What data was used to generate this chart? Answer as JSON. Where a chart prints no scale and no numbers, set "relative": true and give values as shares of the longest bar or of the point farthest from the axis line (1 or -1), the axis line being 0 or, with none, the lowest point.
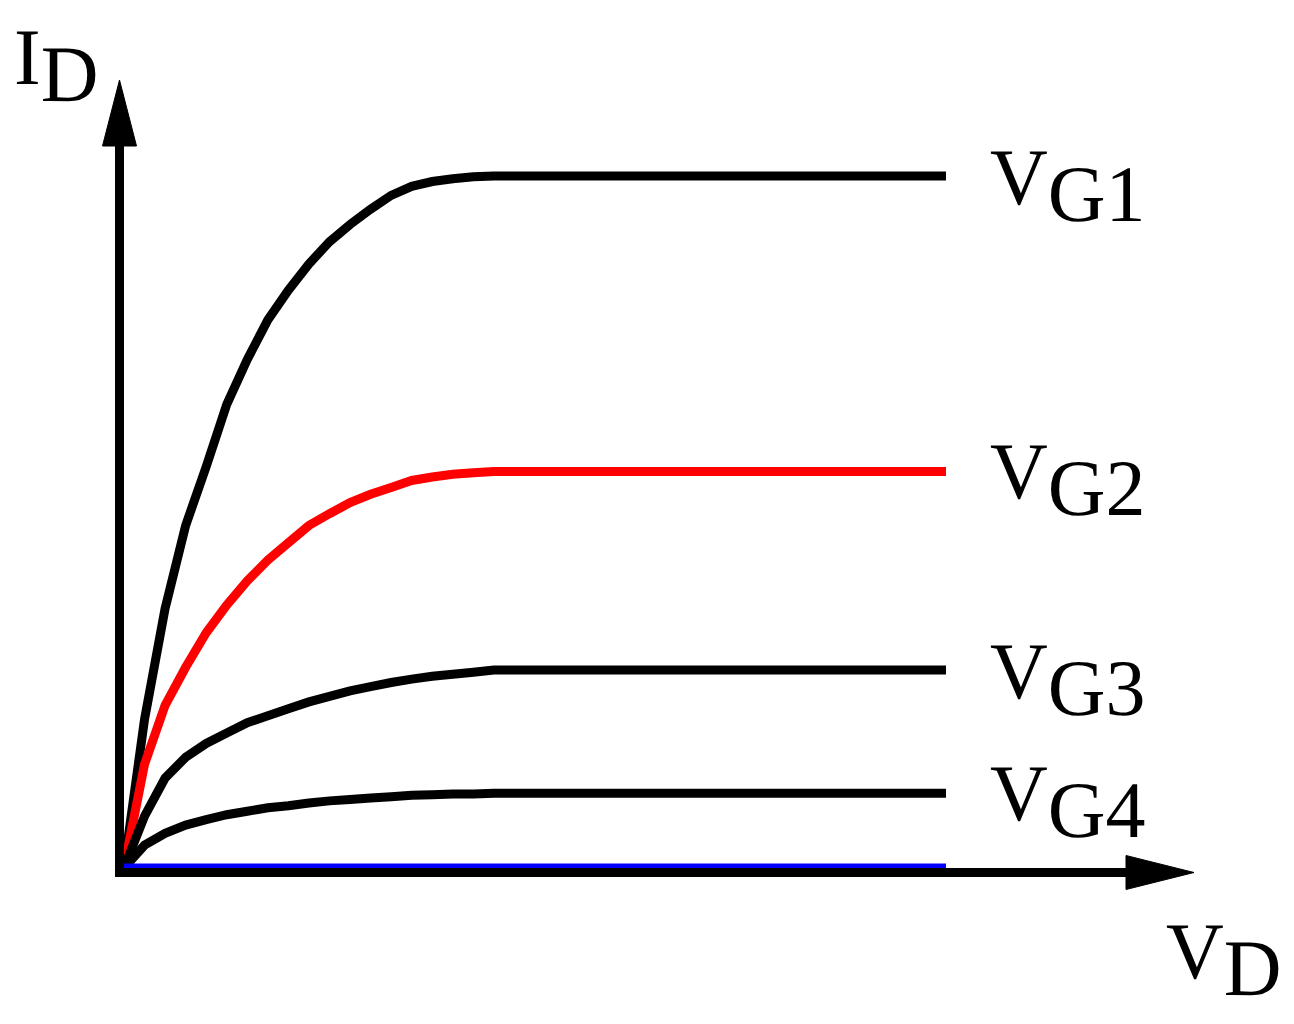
{
  "chart_data": {
    "type": "line",
    "relative": true,
    "xlabel": "V$_{D}$",
    "ylabel": "I$_{D}$",
    "categories": [
      null,
      null,
      null,
      null,
      null,
      null,
      null,
      null,
      null,
      null,
      null,
      null,
      null,
      null,
      null,
      null,
      null,
      null,
      null,
      null,
      null,
      null,
      null,
      null,
      null,
      null,
      null,
      null,
      null,
      null,
      null,
      null,
      null,
      null,
      null,
      null,
      null,
      null,
      null,
      null,
      null
    ],
    "series": [
      {
        "name": "V$_{G1}$",
        "color": "#000000",
        "values": [
          0,
          0.215,
          0.375,
          0.495,
          0.58,
          0.67,
          0.735,
          0.792,
          0.835,
          0.873,
          0.905,
          0.93,
          0.952,
          0.972,
          0.985,
          0.992,
          0.996,
          0.999,
          1,
          1,
          1,
          1,
          1,
          1,
          1,
          1,
          1,
          1,
          1,
          1,
          1,
          1,
          1,
          1,
          1,
          1,
          1,
          1,
          1,
          1,
          1
        ]
      },
      {
        "name": "V$_{G2}$",
        "color": "#ff0000",
        "values": [
          0,
          0.15,
          0.235,
          0.29,
          0.34,
          0.38,
          0.415,
          0.445,
          0.47,
          0.495,
          0.512,
          0.528,
          0.54,
          0.55,
          0.56,
          0.565,
          0.569,
          0.571,
          0.573,
          0.573,
          0.573,
          0.573,
          0.573,
          0.573,
          0.573,
          0.573,
          0.573,
          0.573,
          0.573,
          0.573,
          0.573,
          0.573,
          0.573,
          0.573,
          0.573,
          0.573,
          0.573,
          0.573,
          0.573,
          0.573,
          0.573
        ]
      },
      {
        "name": "V$_{G3}$",
        "color": "#000000",
        "values": [
          0,
          0.075,
          0.13,
          0.16,
          0.18,
          0.195,
          0.21,
          0.22,
          0.23,
          0.24,
          0.248,
          0.256,
          0.262,
          0.268,
          0.273,
          0.277,
          0.28,
          0.283,
          0.286,
          0.286,
          0.286,
          0.286,
          0.286,
          0.286,
          0.286,
          0.286,
          0.286,
          0.286,
          0.286,
          0.286,
          0.286,
          0.286,
          0.286,
          0.286,
          0.286,
          0.286,
          0.286,
          0.286,
          0.286,
          0.286,
          0.286
        ]
      },
      {
        "name": "V$_{G4}$",
        "color": "#000000",
        "values": [
          0,
          0.033,
          0.05,
          0.062,
          0.07,
          0.077,
          0.082,
          0.087,
          0.09,
          0.094,
          0.097,
          0.099,
          0.101,
          0.103,
          0.105,
          0.106,
          0.107,
          0.107,
          0.108,
          0.108,
          0.108,
          0.108,
          0.108,
          0.108,
          0.108,
          0.108,
          0.108,
          0.108,
          0.108,
          0.108,
          0.108,
          0.108,
          0.108,
          0.108,
          0.108,
          0.108,
          0.108,
          0.108,
          0.108,
          0.108,
          0.108
        ]
      },
      {
        "color": "#0000ff",
        "values": [
          0,
          0,
          0,
          0,
          0,
          0,
          0,
          0,
          0,
          0,
          0,
          0,
          0,
          0,
          0,
          0,
          0,
          0,
          0,
          0,
          0,
          0,
          0,
          0,
          0,
          0,
          0,
          0,
          0,
          0,
          0,
          0,
          0,
          0,
          0,
          0,
          0,
          0,
          0,
          0,
          0
        ]
      }
    ],
    "legend": false,
    "marker": "none",
    "line_style": "solid"
  }
}
